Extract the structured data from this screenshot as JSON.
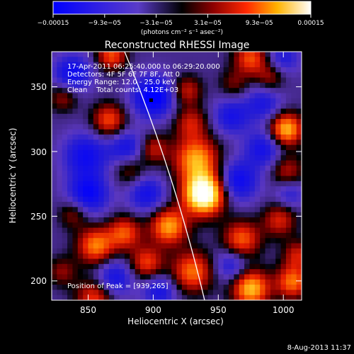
{
  "colorbar": {
    "ticks": [
      "−0.00015",
      "−9.3e−05",
      "−3.1e−05",
      "3.1e−05",
      "9.3e−05",
      "0.00015"
    ],
    "units": "(photons cm⁻² s⁻¹ asec⁻²)",
    "range": [
      -0.00015,
      0.00015
    ]
  },
  "chart_data": {
    "type": "heatmap",
    "title": "Reconstructed RHESSI Image",
    "xlabel": "Heliocentric X (arcsec)",
    "ylabel": "Heliocentric Y (arcsec)",
    "xlim": [
      822,
      1014
    ],
    "ylim": [
      183,
      375
    ],
    "x_ticks": [
      "850",
      "900",
      "950",
      "1000"
    ],
    "y_ticks": [
      "200",
      "250",
      "300",
      "350"
    ],
    "annotations": [
      "17-Apr-2011 06:25:40.000 to 06:29:20.000",
      "Detectors: 4F 5F 6F 7F 8F, Att 0",
      "Energy Range: 12.0 - 25.0 keV",
      "Clean    Total counts: 4.12E+03",
      "Position of Peak = [939,265]"
    ],
    "peak_position": [
      939,
      265
    ],
    "blobs": [
      {
        "x": 939,
        "y": 265,
        "v": 1.7,
        "s": 11
      },
      {
        "x": 933,
        "y": 292,
        "v": 1.0,
        "s": 12
      },
      {
        "x": 929,
        "y": 320,
        "v": 0.55,
        "s": 9
      },
      {
        "x": 926,
        "y": 345,
        "v": 0.55,
        "s": 8
      },
      {
        "x": 868,
        "y": 372,
        "v": 0.75,
        "s": 8
      },
      {
        "x": 831,
        "y": 340,
        "v": 0.45,
        "s": 8
      },
      {
        "x": 866,
        "y": 322,
        "v": 0.75,
        "s": 9
      },
      {
        "x": 900,
        "y": 300,
        "v": 0.55,
        "s": 8
      },
      {
        "x": 882,
        "y": 284,
        "v": 0.45,
        "s": 9
      },
      {
        "x": 912,
        "y": 240,
        "v": 1.0,
        "s": 10
      },
      {
        "x": 878,
        "y": 235,
        "v": 0.75,
        "s": 9
      },
      {
        "x": 856,
        "y": 225,
        "v": 0.9,
        "s": 10
      },
      {
        "x": 839,
        "y": 250,
        "v": 0.45,
        "s": 8
      },
      {
        "x": 975,
        "y": 370,
        "v": 0.75,
        "s": 9
      },
      {
        "x": 990,
        "y": 355,
        "v": 0.45,
        "s": 8
      },
      {
        "x": 1002,
        "y": 315,
        "v": 1.1,
        "s": 9
      },
      {
        "x": 962,
        "y": 350,
        "v": 0.35,
        "s": 8
      },
      {
        "x": 1003,
        "y": 283,
        "v": 0.5,
        "s": 9
      },
      {
        "x": 997,
        "y": 245,
        "v": 0.6,
        "s": 9
      },
      {
        "x": 968,
        "y": 230,
        "v": 0.8,
        "s": 10
      },
      {
        "x": 930,
        "y": 205,
        "v": 0.85,
        "s": 11
      },
      {
        "x": 975,
        "y": 192,
        "v": 1.1,
        "s": 10
      },
      {
        "x": 1007,
        "y": 197,
        "v": 0.85,
        "s": 9
      },
      {
        "x": 1011,
        "y": 218,
        "v": 0.55,
        "s": 8
      },
      {
        "x": 895,
        "y": 212,
        "v": 0.7,
        "s": 9
      },
      {
        "x": 855,
        "y": 185,
        "v": 0.7,
        "s": 10
      },
      {
        "x": 830,
        "y": 205,
        "v": 0.4,
        "s": 8
      },
      {
        "x": 900,
        "y": 340,
        "v": -0.9,
        "s": 11
      },
      {
        "x": 838,
        "y": 358,
        "v": -0.7,
        "s": 10
      },
      {
        "x": 880,
        "y": 300,
        "v": -0.6,
        "s": 10
      },
      {
        "x": 848,
        "y": 295,
        "v": -0.65,
        "s": 12
      },
      {
        "x": 850,
        "y": 265,
        "v": -0.75,
        "s": 11
      },
      {
        "x": 895,
        "y": 265,
        "v": -0.6,
        "s": 10
      },
      {
        "x": 960,
        "y": 325,
        "v": -0.55,
        "s": 10
      },
      {
        "x": 985,
        "y": 335,
        "v": -0.5,
        "s": 10
      },
      {
        "x": 965,
        "y": 275,
        "v": -0.7,
        "s": 11
      },
      {
        "x": 985,
        "y": 300,
        "v": -0.6,
        "s": 10
      },
      {
        "x": 870,
        "y": 200,
        "v": -0.6,
        "s": 10
      },
      {
        "x": 905,
        "y": 190,
        "v": -0.55,
        "s": 9
      },
      {
        "x": 960,
        "y": 210,
        "v": -0.5,
        "s": 9
      },
      {
        "x": 1005,
        "y": 265,
        "v": -0.4,
        "s": 8
      },
      {
        "x": 1000,
        "y": 370,
        "v": -0.45,
        "s": 9
      }
    ]
  },
  "footer": {
    "date": "8-Aug-2013 11:37"
  }
}
